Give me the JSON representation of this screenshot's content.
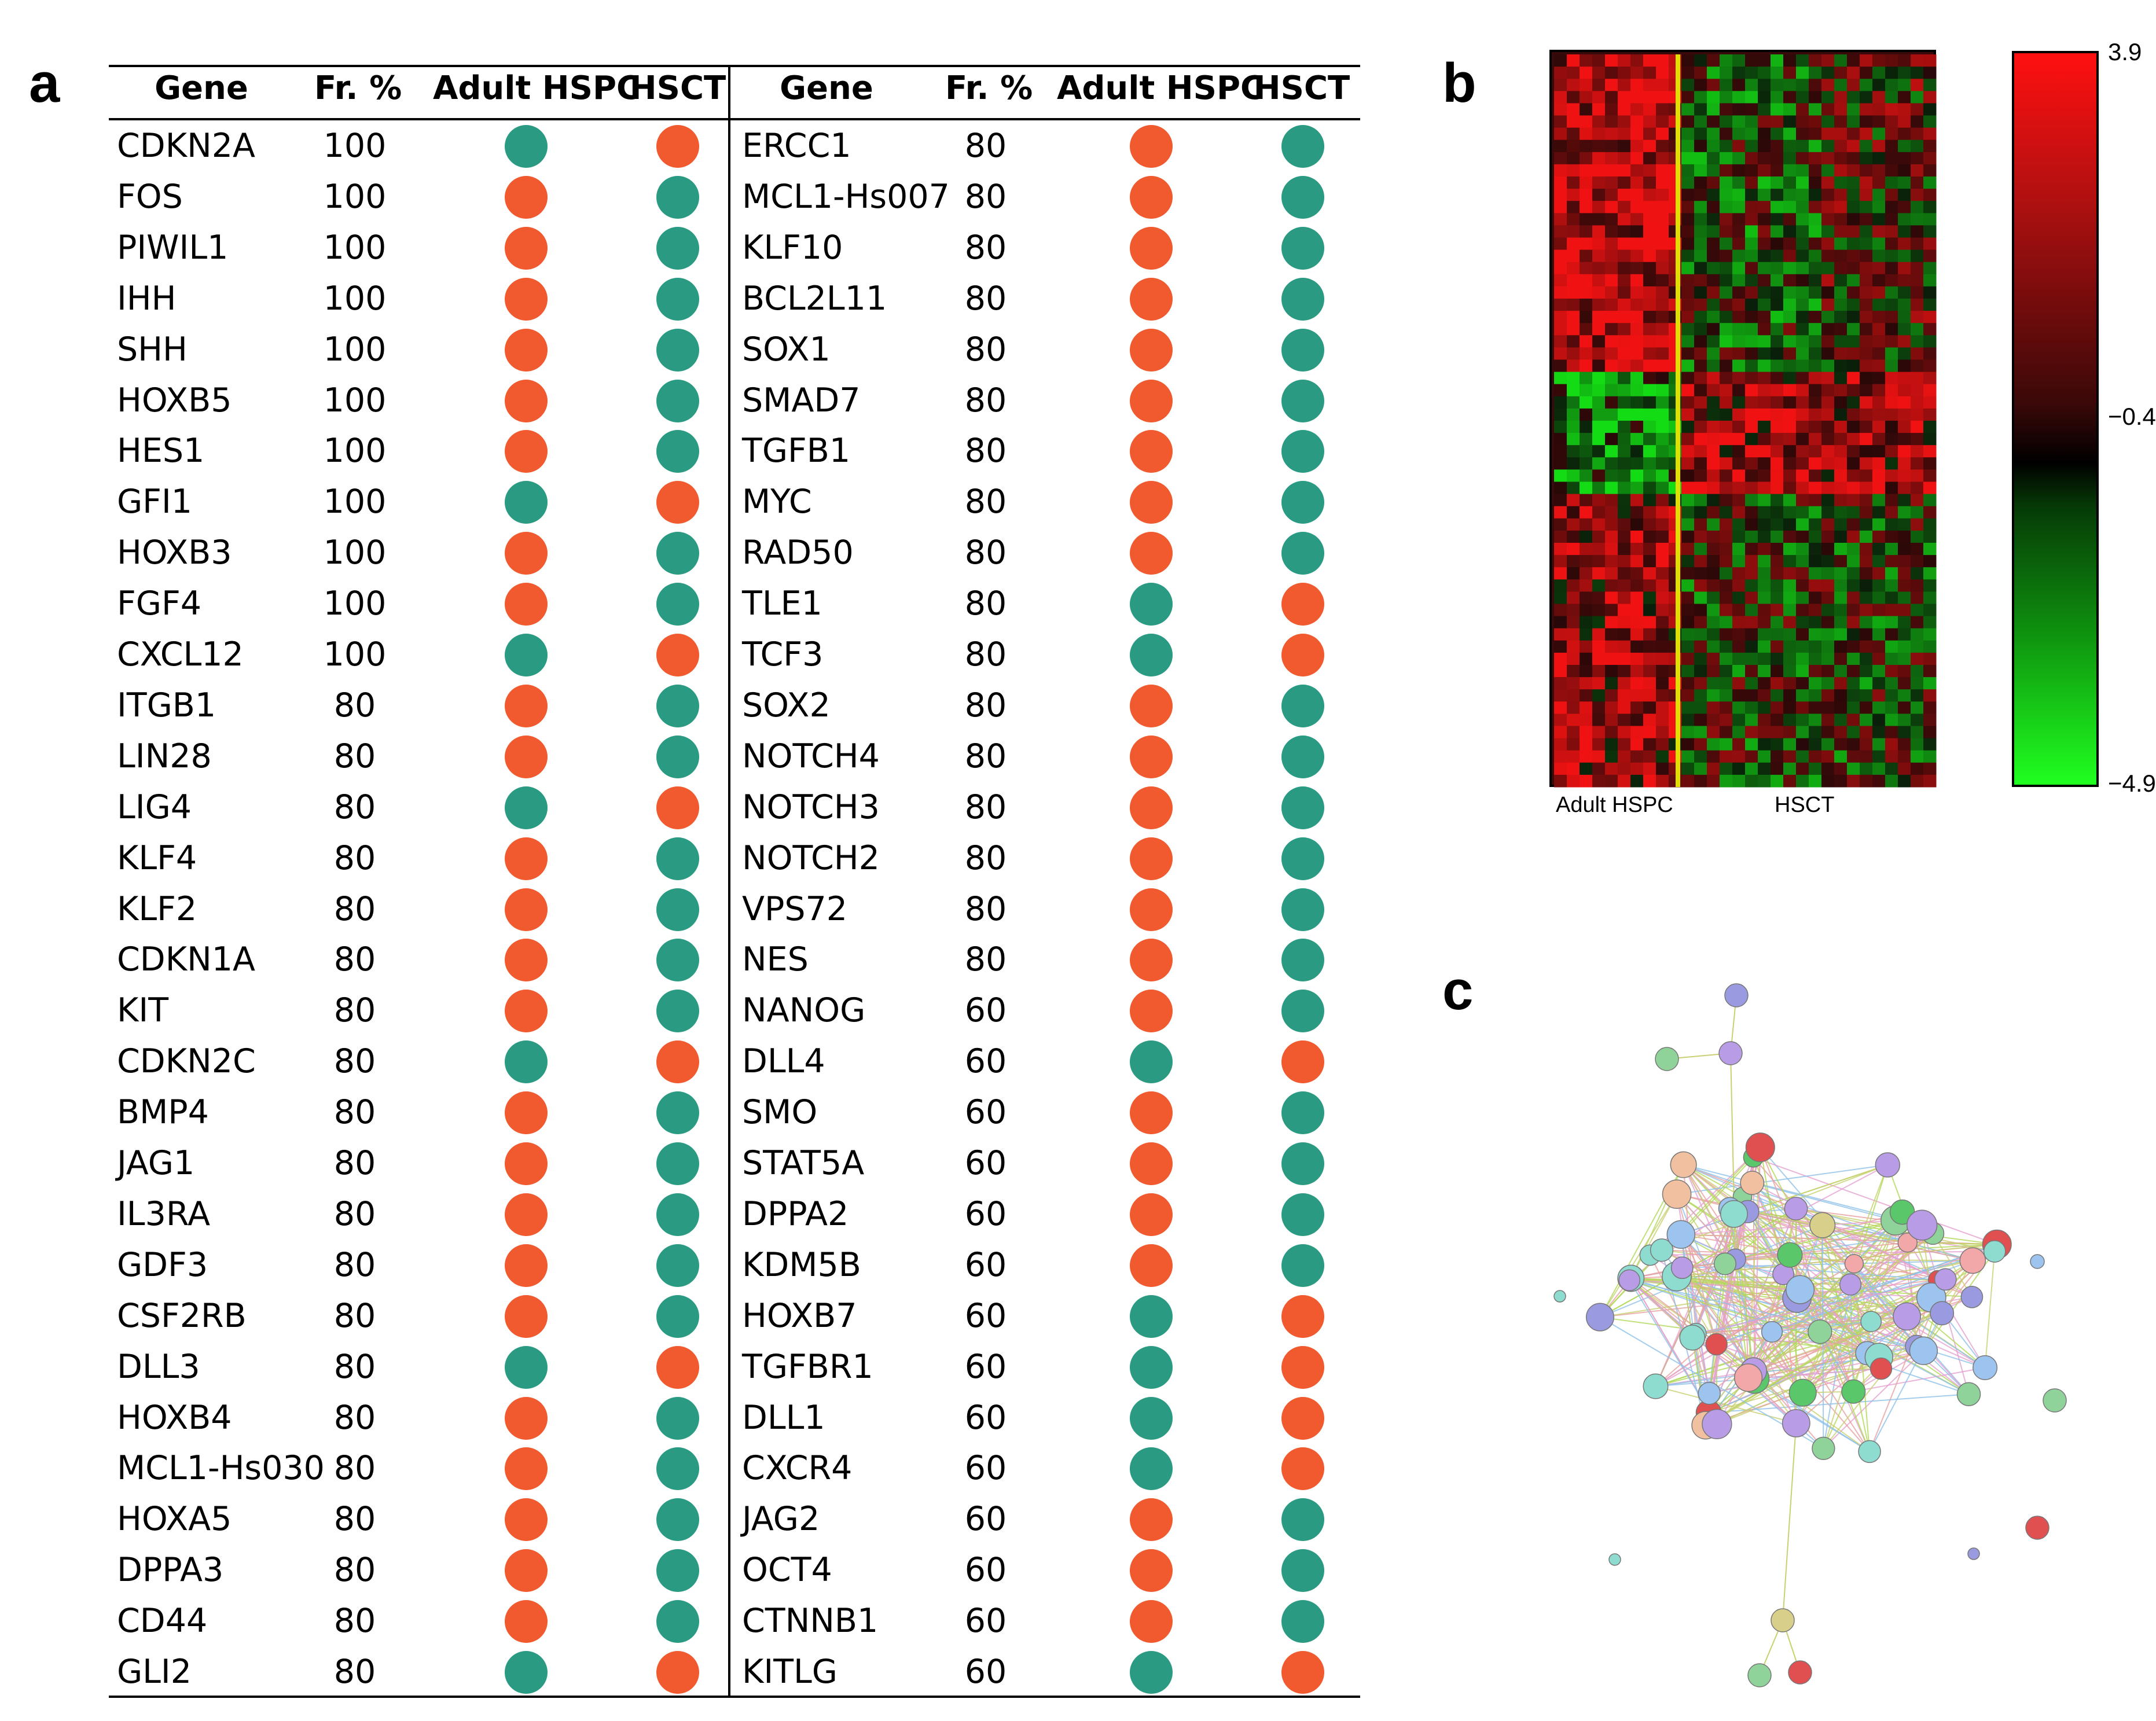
{
  "panels": {
    "a": "a",
    "b": "b",
    "c": "c"
  },
  "table": {
    "headers": {
      "gene": "Gene",
      "freq": "Fr. %",
      "adult": "Adult HSPC",
      "hsct": "HSCT"
    },
    "colors": {
      "up": "#f15a2e",
      "down": "#2a9b82"
    },
    "left": [
      {
        "gene": "CDKN2A",
        "fr": "100",
        "adult": "down",
        "hsct": "up"
      },
      {
        "gene": "FOS",
        "fr": "100",
        "adult": "up",
        "hsct": "down"
      },
      {
        "gene": "PIWIL1",
        "fr": "100",
        "adult": "up",
        "hsct": "down"
      },
      {
        "gene": "IHH",
        "fr": "100",
        "adult": "up",
        "hsct": "down"
      },
      {
        "gene": "SHH",
        "fr": "100",
        "adult": "up",
        "hsct": "down"
      },
      {
        "gene": "HOXB5",
        "fr": "100",
        "adult": "up",
        "hsct": "down"
      },
      {
        "gene": "HES1",
        "fr": "100",
        "adult": "up",
        "hsct": "down"
      },
      {
        "gene": "GFI1",
        "fr": "100",
        "adult": "down",
        "hsct": "up"
      },
      {
        "gene": "HOXB3",
        "fr": "100",
        "adult": "up",
        "hsct": "down"
      },
      {
        "gene": "FGF4",
        "fr": "100",
        "adult": "up",
        "hsct": "down"
      },
      {
        "gene": "CXCL12",
        "fr": "100",
        "adult": "down",
        "hsct": "up"
      },
      {
        "gene": "ITGB1",
        "fr": "80",
        "adult": "up",
        "hsct": "down"
      },
      {
        "gene": "LIN28",
        "fr": "80",
        "adult": "up",
        "hsct": "down"
      },
      {
        "gene": "LIG4",
        "fr": "80",
        "adult": "down",
        "hsct": "up"
      },
      {
        "gene": "KLF4",
        "fr": "80",
        "adult": "up",
        "hsct": "down"
      },
      {
        "gene": "KLF2",
        "fr": "80",
        "adult": "up",
        "hsct": "down"
      },
      {
        "gene": "CDKN1A",
        "fr": "80",
        "adult": "up",
        "hsct": "down"
      },
      {
        "gene": "KIT",
        "fr": "80",
        "adult": "up",
        "hsct": "down"
      },
      {
        "gene": "CDKN2C",
        "fr": "80",
        "adult": "down",
        "hsct": "up"
      },
      {
        "gene": "BMP4",
        "fr": "80",
        "adult": "up",
        "hsct": "down"
      },
      {
        "gene": "JAG1",
        "fr": "80",
        "adult": "up",
        "hsct": "down"
      },
      {
        "gene": "IL3RA",
        "fr": "80",
        "adult": "up",
        "hsct": "down"
      },
      {
        "gene": "GDF3",
        "fr": "80",
        "adult": "up",
        "hsct": "down"
      },
      {
        "gene": "CSF2RB",
        "fr": "80",
        "adult": "up",
        "hsct": "down"
      },
      {
        "gene": "DLL3",
        "fr": "80",
        "adult": "down",
        "hsct": "up"
      },
      {
        "gene": "HOXB4",
        "fr": "80",
        "adult": "up",
        "hsct": "down"
      },
      {
        "gene": "MCL1-Hs030",
        "fr": "80",
        "adult": "up",
        "hsct": "down"
      },
      {
        "gene": "HOXA5",
        "fr": "80",
        "adult": "up",
        "hsct": "down"
      },
      {
        "gene": "DPPA3",
        "fr": "80",
        "adult": "up",
        "hsct": "down"
      },
      {
        "gene": "CD44",
        "fr": "80",
        "adult": "up",
        "hsct": "down"
      },
      {
        "gene": "GLI2",
        "fr": "80",
        "adult": "down",
        "hsct": "up"
      }
    ],
    "right": [
      {
        "gene": "ERCC1",
        "fr": "80",
        "adult": "up",
        "hsct": "down"
      },
      {
        "gene": "MCL1-Hs007",
        "fr": "80",
        "adult": "up",
        "hsct": "down"
      },
      {
        "gene": "KLF10",
        "fr": "80",
        "adult": "up",
        "hsct": "down"
      },
      {
        "gene": "BCL2L11",
        "fr": "80",
        "adult": "up",
        "hsct": "down"
      },
      {
        "gene": "SOX1",
        "fr": "80",
        "adult": "up",
        "hsct": "down"
      },
      {
        "gene": "SMAD7",
        "fr": "80",
        "adult": "up",
        "hsct": "down"
      },
      {
        "gene": "TGFB1",
        "fr": "80",
        "adult": "up",
        "hsct": "down"
      },
      {
        "gene": "MYC",
        "fr": "80",
        "adult": "up",
        "hsct": "down"
      },
      {
        "gene": "RAD50",
        "fr": "80",
        "adult": "up",
        "hsct": "down"
      },
      {
        "gene": "TLE1",
        "fr": "80",
        "adult": "down",
        "hsct": "up"
      },
      {
        "gene": "TCF3",
        "fr": "80",
        "adult": "down",
        "hsct": "up"
      },
      {
        "gene": "SOX2",
        "fr": "80",
        "adult": "up",
        "hsct": "down"
      },
      {
        "gene": "NOTCH4",
        "fr": "80",
        "adult": "up",
        "hsct": "down"
      },
      {
        "gene": "NOTCH3",
        "fr": "80",
        "adult": "up",
        "hsct": "down"
      },
      {
        "gene": "NOTCH2",
        "fr": "80",
        "adult": "up",
        "hsct": "down"
      },
      {
        "gene": "VPS72",
        "fr": "80",
        "adult": "up",
        "hsct": "down"
      },
      {
        "gene": "NES",
        "fr": "80",
        "adult": "up",
        "hsct": "down"
      },
      {
        "gene": "NANOG",
        "fr": "60",
        "adult": "up",
        "hsct": "down"
      },
      {
        "gene": "DLL4",
        "fr": "60",
        "adult": "down",
        "hsct": "up"
      },
      {
        "gene": "SMO",
        "fr": "60",
        "adult": "up",
        "hsct": "down"
      },
      {
        "gene": "STAT5A",
        "fr": "60",
        "adult": "up",
        "hsct": "down"
      },
      {
        "gene": "DPPA2",
        "fr": "60",
        "adult": "up",
        "hsct": "down"
      },
      {
        "gene": "KDM5B",
        "fr": "60",
        "adult": "up",
        "hsct": "down"
      },
      {
        "gene": "HOXB7",
        "fr": "60",
        "adult": "down",
        "hsct": "up"
      },
      {
        "gene": "TGFBR1",
        "fr": "60",
        "adult": "down",
        "hsct": "up"
      },
      {
        "gene": "DLL1",
        "fr": "60",
        "adult": "down",
        "hsct": "up"
      },
      {
        "gene": "CXCR4",
        "fr": "60",
        "adult": "down",
        "hsct": "up"
      },
      {
        "gene": "JAG2",
        "fr": "60",
        "adult": "up",
        "hsct": "down"
      },
      {
        "gene": "OCT4",
        "fr": "60",
        "adult": "up",
        "hsct": "down"
      },
      {
        "gene": "CTNNB1",
        "fr": "60",
        "adult": "up",
        "hsct": "down"
      },
      {
        "gene": "KITLG",
        "fr": "60",
        "adult": "down",
        "hsct": "up"
      }
    ]
  },
  "heatmap": {
    "group_labels": {
      "adult": "Adult HSPC",
      "hsct": "HSCT"
    },
    "colorbar": {
      "max": "3.9",
      "mid": "−0.4",
      "min": "−4.9"
    },
    "divider_color": "#e0e000"
  },
  "network": {
    "nodes_count": 68,
    "palette": [
      "#8fd39b",
      "#f2a8a8",
      "#d8d08a",
      "#9cc4ee",
      "#9a9ae0",
      "#b89ce6",
      "#8edcd0",
      "#f0c0a0",
      "#5ac86a",
      "#e05050"
    ]
  }
}
